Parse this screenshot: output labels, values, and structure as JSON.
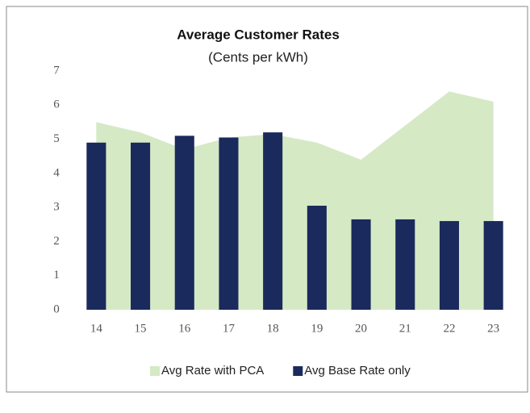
{
  "chart_data": {
    "type": "bar",
    "title": "Average Customer Rates",
    "subtitle": "(Cents per kWh)",
    "categories": [
      "14",
      "15",
      "16",
      "17",
      "18",
      "19",
      "20",
      "21",
      "22",
      "23"
    ],
    "series": [
      {
        "name": "Avg Rate with PCA",
        "type": "area",
        "color": "#d5e9c5",
        "values": [
          5.5,
          5.2,
          4.7,
          5.05,
          5.15,
          4.9,
          4.4,
          5.4,
          6.4,
          6.1
        ]
      },
      {
        "name": "Avg Base Rate only",
        "type": "bar",
        "color": "#1a2a5c",
        "values": [
          4.9,
          4.9,
          5.1,
          5.05,
          5.2,
          3.05,
          2.65,
          2.65,
          2.6,
          2.6
        ]
      }
    ],
    "ylim": [
      0,
      7
    ],
    "yticks": [
      0,
      1,
      2,
      3,
      4,
      5,
      6,
      7
    ],
    "grid": false,
    "legend": "bottom"
  }
}
